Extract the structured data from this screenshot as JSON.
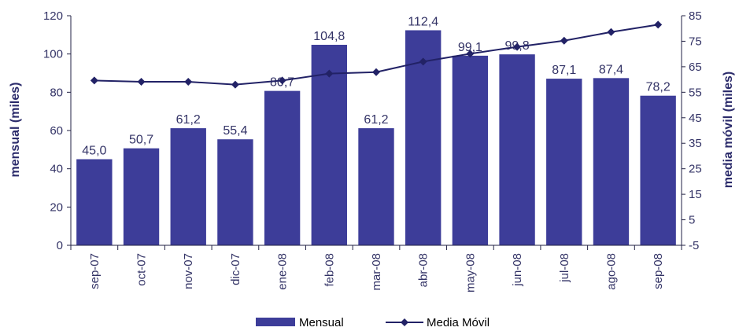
{
  "chart_data": {
    "type": "bar",
    "categories": [
      "sep-07",
      "oct-07",
      "nov-07",
      "dic-07",
      "ene-08",
      "feb-08",
      "mar-08",
      "abr-08",
      "may-08",
      "jun-08",
      "jul-08",
      "ago-08",
      "sep-08"
    ],
    "series": [
      {
        "name": "Mensual",
        "type": "bar",
        "axis": "left",
        "color": "#3d3d99",
        "values": [
          45.0,
          50.7,
          61.2,
          55.4,
          80.7,
          104.8,
          61.2,
          112.4,
          99.1,
          99.8,
          87.1,
          87.4,
          78.2
        ],
        "labels": [
          "45,0",
          "50,7",
          "61,2",
          "55,4",
          "80,7",
          "104,8",
          "61,2",
          "112,4",
          "99,1",
          "99,8",
          "87,1",
          "87,4",
          "78,2"
        ]
      },
      {
        "name": "Media Móvil",
        "type": "line",
        "axis": "right",
        "color": "#222266",
        "marker": "diamond",
        "values": [
          59.6,
          59.1,
          59.1,
          58.0,
          59.6,
          62.3,
          62.9,
          67.0,
          70.1,
          72.8,
          75.2,
          78.6,
          81.5
        ]
      }
    ],
    "ylabel": "mensual (miles)",
    "y2label": "media móvil (miles)",
    "ylim": [
      0,
      120
    ],
    "y2lim": [
      -5,
      85
    ],
    "yticks": [
      "0",
      "20",
      "40",
      "60",
      "80",
      "100",
      "120"
    ],
    "y2ticks": [
      "-5",
      "5",
      "15",
      "25",
      "35",
      "45",
      "55",
      "65",
      "75",
      "85"
    ],
    "grid": false,
    "legend_position": "bottom"
  }
}
